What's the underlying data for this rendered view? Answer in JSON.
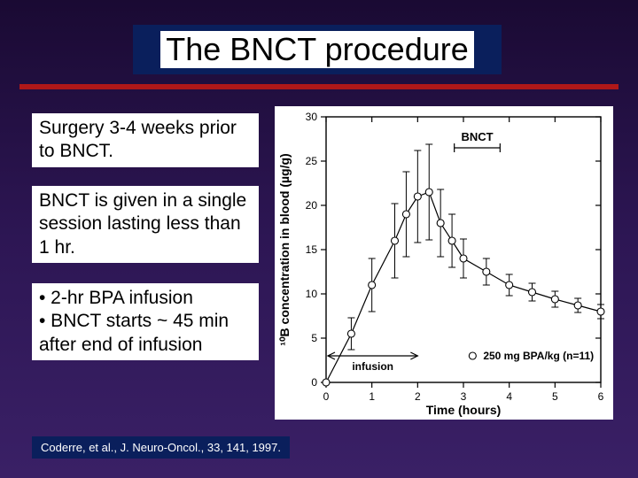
{
  "slide": {
    "title": "The BNCT procedure",
    "accent_color": "#b01818",
    "title_box_color": "#0a1f5c",
    "background_gradient": [
      "#1a0a33",
      "#3a2066"
    ]
  },
  "paragraphs": {
    "p1": "Surgery 3-4 weeks prior to BNCT.",
    "p2": "BNCT is given in a single session lasting less than 1 hr.",
    "p3_line1": "• 2-hr BPA infusion",
    "p3_line2": "• BNCT starts ~ 45 min after end of infusion"
  },
  "citation": "Coderre, et al., J. Neuro-Oncol., 33, 141, 1997.",
  "chart": {
    "type": "scatter_errorbar_line",
    "background_color": "#ffffff",
    "axis_color": "#000000",
    "line_color": "#000000",
    "marker_style": "open_circle",
    "marker_size": 4,
    "line_width": 1.2,
    "error_bar_width": 1,
    "xlabel": "Time (hours)",
    "ylabel": "¹⁰B concentration in blood (µg/g)",
    "label_fontsize": 14,
    "tick_fontsize": 12,
    "xlim": [
      0,
      6
    ],
    "ylim": [
      0,
      30
    ],
    "xtick_step": 1,
    "ytick_step": 5,
    "annotations": {
      "bnct_label": "BNCT",
      "bnct_range_x": [
        2.8,
        3.8
      ],
      "bnct_y": 26.5,
      "infusion_label": "infusion",
      "infusion_range_x": [
        0,
        2
      ],
      "infusion_y": 3,
      "legend_marker_x": 3.2,
      "legend_marker_y": 3,
      "legend_text": "250 mg BPA/kg (n=11)"
    },
    "points": [
      {
        "x": 0.0,
        "y": 0.0,
        "err": 0
      },
      {
        "x": 0.55,
        "y": 5.5,
        "err": 1.8
      },
      {
        "x": 1.0,
        "y": 11.0,
        "err": 3.0
      },
      {
        "x": 1.5,
        "y": 16.0,
        "err": 4.2
      },
      {
        "x": 1.75,
        "y": 19.0,
        "err": 4.8
      },
      {
        "x": 2.0,
        "y": 21.0,
        "err": 5.2
      },
      {
        "x": 2.25,
        "y": 21.5,
        "err": 5.4
      },
      {
        "x": 2.5,
        "y": 18.0,
        "err": 3.8
      },
      {
        "x": 2.75,
        "y": 16.0,
        "err": 3.0
      },
      {
        "x": 3.0,
        "y": 14.0,
        "err": 2.2
      },
      {
        "x": 3.5,
        "y": 12.5,
        "err": 1.5
      },
      {
        "x": 4.0,
        "y": 11.0,
        "err": 1.2
      },
      {
        "x": 4.5,
        "y": 10.2,
        "err": 1.0
      },
      {
        "x": 5.0,
        "y": 9.4,
        "err": 0.9
      },
      {
        "x": 5.5,
        "y": 8.7,
        "err": 0.8
      },
      {
        "x": 6.0,
        "y": 8.0,
        "err": 0.8
      }
    ]
  }
}
